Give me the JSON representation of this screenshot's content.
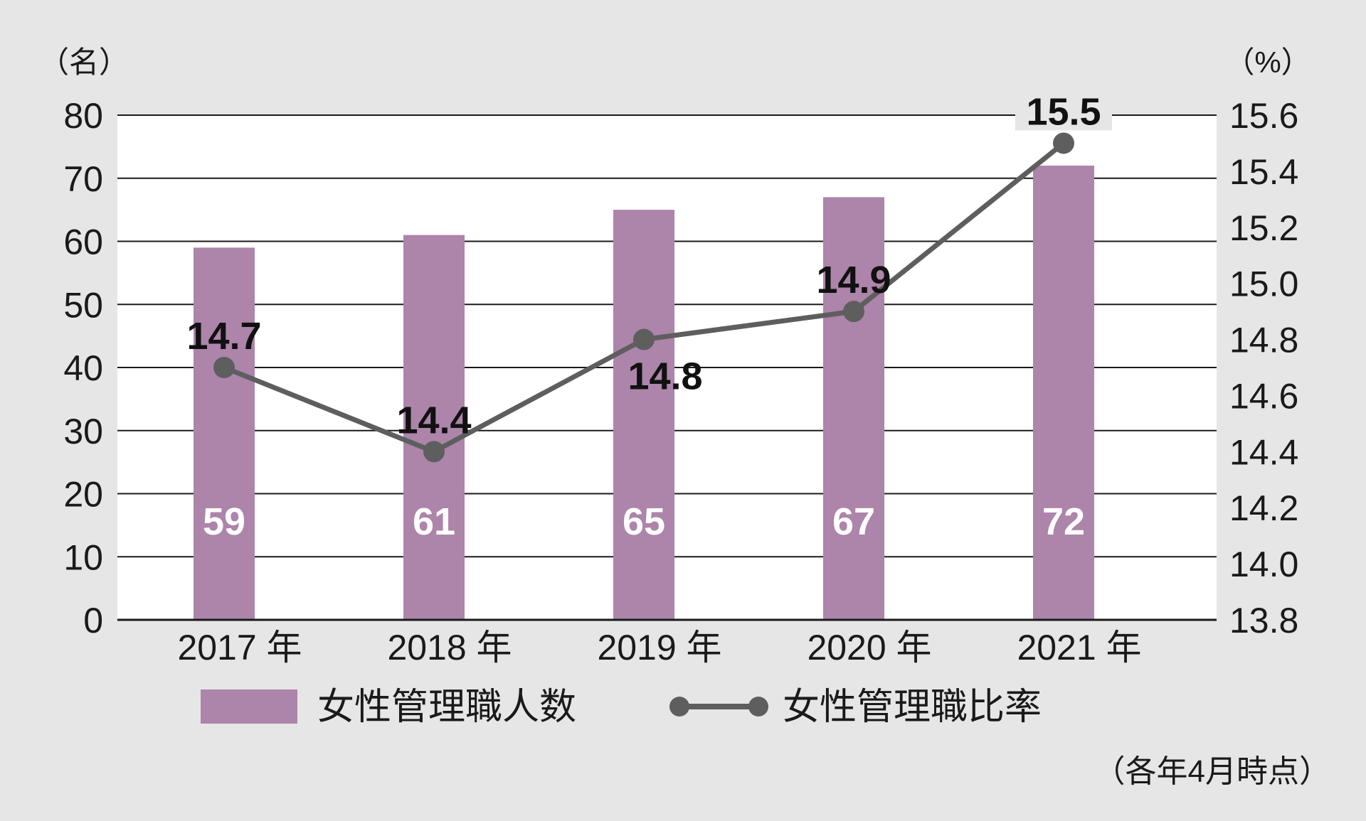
{
  "chart_data": {
    "type": "bar+line",
    "categories": [
      "2017 年",
      "2018 年",
      "2019 年",
      "2020 年",
      "2021 年"
    ],
    "series": [
      {
        "name": "女性管理職人数",
        "type": "bar",
        "axis": "left",
        "color": "#ad84aa",
        "values": [
          59,
          61,
          65,
          67,
          72
        ],
        "labels": [
          "59",
          "61",
          "65",
          "67",
          "72"
        ]
      },
      {
        "name": "女性管理職比率",
        "type": "line",
        "axis": "right",
        "color": "#5e5e5e",
        "values": [
          14.7,
          14.4,
          14.8,
          14.9,
          15.5
        ],
        "labels": [
          "14.7",
          "14.4",
          "14.8",
          "14.9",
          "15.5"
        ],
        "label_positions": [
          "above",
          "above",
          "below",
          "above",
          "above"
        ]
      }
    ],
    "left_axis": {
      "unit": "（名）",
      "ylim": [
        0,
        80
      ],
      "ticks": [
        "0",
        "10",
        "20",
        "30",
        "40",
        "50",
        "60",
        "70",
        "80"
      ]
    },
    "right_axis": {
      "unit": "（%）",
      "ylim": [
        13.8,
        15.6
      ],
      "ticks": [
        "13.8",
        "14.0",
        "14.2",
        "14.4",
        "14.6",
        "14.8",
        "15.0",
        "15.2",
        "15.4",
        "15.6"
      ]
    },
    "legend_position": "bottom",
    "note": "（各年4月時点）",
    "grid": true
  }
}
